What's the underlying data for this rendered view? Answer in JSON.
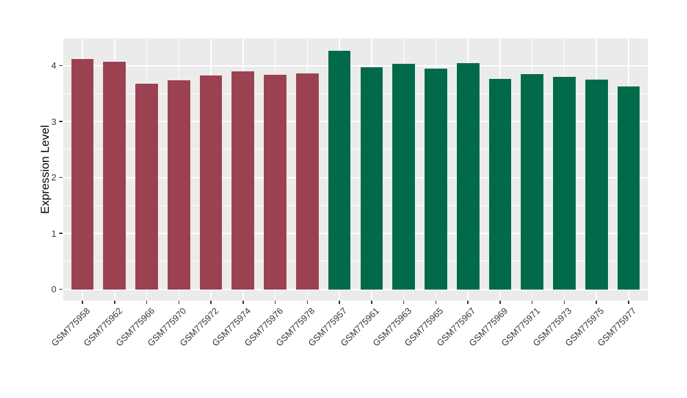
{
  "chart_data": {
    "type": "bar",
    "title": "",
    "xlabel": "",
    "ylabel": "Expression Level",
    "categories": [
      "GSM775958",
      "GSM775962",
      "GSM775966",
      "GSM775970",
      "GSM775972",
      "GSM775974",
      "GSM775976",
      "GSM775978",
      "GSM775957",
      "GSM775961",
      "GSM775963",
      "GSM775965",
      "GSM775967",
      "GSM775969",
      "GSM775971",
      "GSM775973",
      "GSM775975",
      "GSM775977"
    ],
    "values": [
      4.12,
      4.07,
      3.67,
      3.74,
      3.82,
      3.89,
      3.83,
      3.86,
      4.26,
      3.97,
      4.03,
      3.95,
      4.04,
      3.76,
      3.85,
      3.8,
      3.75,
      3.63
    ],
    "bar_groups": [
      "group1",
      "group1",
      "group1",
      "group1",
      "group1",
      "group1",
      "group1",
      "group1",
      "group2",
      "group2",
      "group2",
      "group2",
      "group2",
      "group2",
      "group2",
      "group2",
      "group2",
      "group2"
    ],
    "group_colors": {
      "group1": "#9C4152",
      "group2": "#016A4B"
    },
    "yticks": [
      0,
      1,
      2,
      3,
      4
    ],
    "yticks_minor": [
      0.5,
      1.5,
      2.5,
      3.5
    ],
    "ylim": [
      -0.2,
      4.49
    ],
    "legend": "none",
    "panel_background": "#EBEBEB",
    "gridline_color": "#FFFFFF",
    "axis_text_color": "#333333"
  }
}
